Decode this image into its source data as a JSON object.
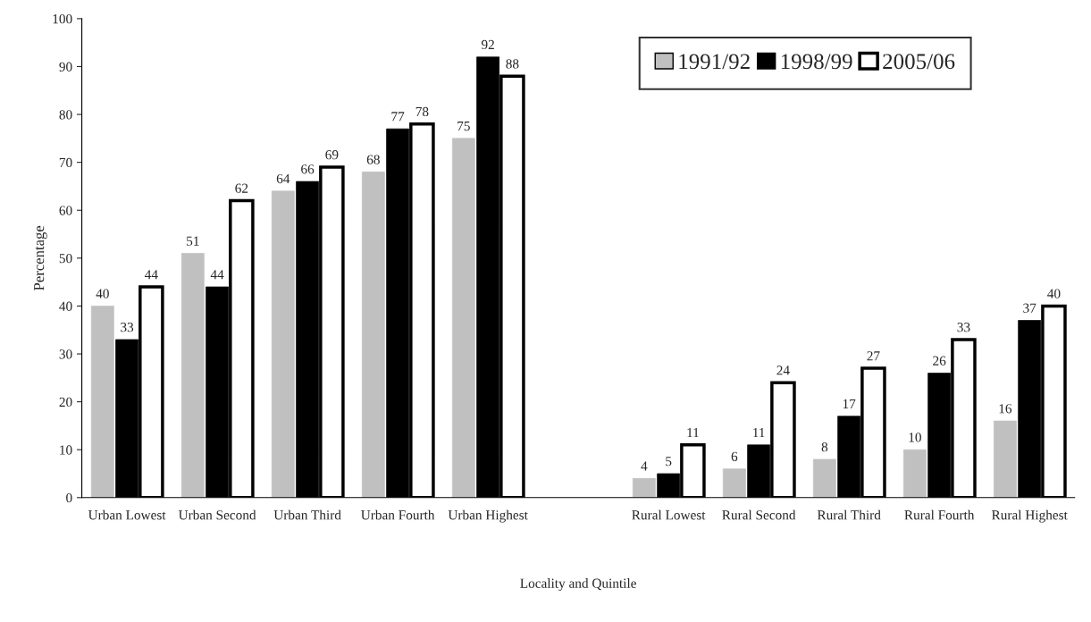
{
  "chart_data": {
    "type": "bar",
    "xlabel": "Locality and Quintile",
    "ylabel": "Percentage",
    "categories": [
      "Urban Lowest",
      "Urban Second",
      "Urban Third",
      "Urban Fourth",
      "Urban Highest",
      null,
      "Rural Lowest",
      "Rural Second",
      "Rural Third",
      "Rural Fourth",
      "Rural Highest"
    ],
    "series": [
      {
        "name": "1991/92",
        "color": "#c0c0c0",
        "values": [
          40,
          51,
          64,
          68,
          75,
          null,
          4,
          6,
          8,
          10,
          16
        ]
      },
      {
        "name": "1998/99",
        "color": "#000000",
        "values": [
          33,
          44,
          66,
          77,
          92,
          null,
          5,
          11,
          17,
          26,
          37
        ]
      },
      {
        "name": "2005/06",
        "color": "#ffffff",
        "values": [
          44,
          62,
          69,
          78,
          88,
          null,
          11,
          24,
          27,
          33,
          40
        ]
      }
    ],
    "ylim": [
      0,
      100
    ],
    "yticks": [
      0,
      10,
      20,
      30,
      40,
      50,
      60,
      70,
      80,
      90,
      100
    ],
    "data_labels": true,
    "grid": false,
    "legend": "top right"
  }
}
